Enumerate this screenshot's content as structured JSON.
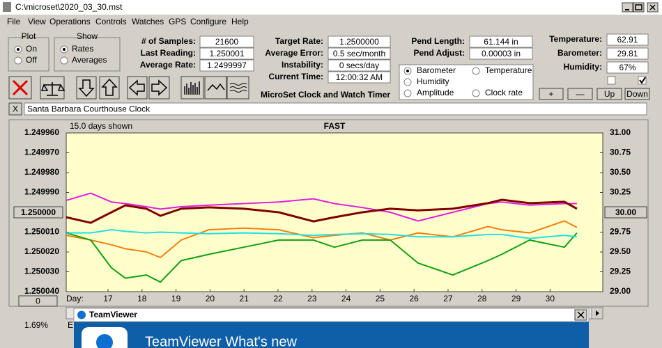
{
  "window": {
    "title": "C:\\microset\\2020_03_30.mst",
    "menu": [
      "File",
      "View",
      "Operations",
      "Controls",
      "Watches",
      "GPS",
      "Configure",
      "Help"
    ]
  },
  "plot_group": {
    "title": "Plot",
    "options": [
      "On",
      "Off"
    ],
    "selected": 0
  },
  "show_group": {
    "title": "Show",
    "options": [
      "Rates",
      "Averages"
    ],
    "selected": 0
  },
  "fields": [
    {
      "label": "# of Samples:",
      "value": "21600"
    },
    {
      "label": "Last Reading:",
      "value": "1.250001"
    },
    {
      "label": "Average Rate:",
      "value": "1.2499997"
    },
    {
      "label": "Target Rate:",
      "value": "1.2500000"
    },
    {
      "label": "Average Error:",
      "value": "0.5 sec/month"
    },
    {
      "label": "Instability:",
      "value": "0 secs/day"
    },
    {
      "label": "Current Time:",
      "value": "12:00:32 AM"
    },
    {
      "label": "Pend Length:",
      "value": "61.144 in"
    },
    {
      "label": "Pend Adjust:",
      "value": "0.00003 in"
    },
    {
      "label": "Temperature:",
      "value": "62.91"
    },
    {
      "label": "Barometer:",
      "value": "29.81"
    },
    {
      "label": "Humidity:",
      "value": "67%"
    }
  ],
  "app_title": "MicroSet Clock and Watch Timer",
  "env_buttons": [
    "+",
    "—",
    "Up",
    "Down"
  ],
  "close_button": "X",
  "watch_name": "Santa Barbara Courthouse Clock",
  "chart_data": {
    "type": "line",
    "title": "FAST",
    "subtitle": "15.0 days shown",
    "x_label": "Day:",
    "x": [
      15.77,
      16.49,
      17.1,
      17.51,
      18.13,
      18.54,
      19.15,
      19.97,
      20.99,
      22.02,
      23.04,
      23.66,
      24.48,
      25.3,
      26.12,
      27.14,
      28.17,
      28.58,
      29.4,
      30.42,
      30.79
    ],
    "xlim": [
      15.77,
      31.55
    ],
    "xticks": [
      17,
      18,
      19,
      20,
      21,
      22,
      23,
      24,
      25,
      26,
      27,
      28,
      29,
      30
    ],
    "ylim": [
      1.24996,
      1.25004
    ],
    "y_reversed": true,
    "yticks": [
      {
        "value": 1.24996,
        "label": "1.249960"
      },
      {
        "value": 1.24997,
        "label": "1.249970"
      },
      {
        "value": 1.24998,
        "label": "1.249980"
      },
      {
        "value": 1.24999,
        "label": "1.249990"
      },
      {
        "value": 1.25001,
        "label": "1.250010"
      },
      {
        "value": 1.25002,
        "label": "1.250020"
      },
      {
        "value": 1.25003,
        "label": "1.250030"
      },
      {
        "value": 1.25004,
        "label": "1.250040"
      }
    ],
    "y2lim": [
      29,
      31
    ],
    "y2ticks": [
      {
        "value": 31,
        "label": "31.00"
      },
      {
        "value": 30.75,
        "label": "30.75"
      },
      {
        "value": 30.5,
        "label": "30.50"
      },
      {
        "value": 30.25,
        "label": "30.25"
      },
      {
        "value": 29.75,
        "label": "29.75"
      },
      {
        "value": 29.5,
        "label": "29.50"
      },
      {
        "value": 29.25,
        "label": "29.25"
      },
      {
        "value": 29,
        "label": "29.00"
      }
    ],
    "center_left": "1.250000",
    "center_right": "30.00",
    "selected_series": 0,
    "series": [
      {
        "name": "Barometer",
        "color": "#f08010",
        "axis": "y2",
        "values": [
          29.71,
          29.65,
          29.59,
          29.54,
          29.5,
          29.43,
          29.65,
          29.78,
          29.8,
          29.78,
          29.68,
          29.71,
          29.74,
          29.65,
          29.74,
          29.69,
          29.82,
          29.78,
          29.74,
          29.89,
          29.81
        ]
      },
      {
        "name": "Temperature",
        "color": "#10a010",
        "axis": "y2",
        "values": [
          29.74,
          29.65,
          29.3,
          29.17,
          29.21,
          29.12,
          29.39,
          29.47,
          29.56,
          29.65,
          29.65,
          29.56,
          29.65,
          29.65,
          29.36,
          29.21,
          29.39,
          29.47,
          29.65,
          29.56,
          29.74
        ]
      },
      {
        "name": "Humidity",
        "color": "#e020e0",
        "axis": "y2",
        "values": [
          30.15,
          30.24,
          30.13,
          30.11,
          30.07,
          30.04,
          30.07,
          30.09,
          30.11,
          30.13,
          30.17,
          30.11,
          30.06,
          30.0,
          29.89,
          30.0,
          30.11,
          30.13,
          30.09,
          30.11,
          30.11
        ]
      },
      {
        "name": "Amplitude",
        "color": "#20e0e0",
        "axis": "y2",
        "values": [
          29.74,
          29.74,
          29.78,
          29.76,
          29.74,
          29.75,
          29.74,
          29.73,
          29.74,
          29.73,
          29.71,
          29.72,
          29.73,
          29.72,
          29.69,
          29.69,
          29.72,
          29.72,
          29.67,
          29.71,
          29.69
        ]
      },
      {
        "name": "Clock rate",
        "color": "#800000",
        "values": [
          1.2500025,
          1.2500053,
          1.25,
          1.2499965,
          1.2499982,
          1.2500018,
          1.2499982,
          1.2499975,
          1.2499982,
          1.25,
          1.2500046,
          1.2500025,
          1.25,
          1.2499982,
          1.249999,
          1.2499982,
          1.2499954,
          1.2499937,
          1.2499954,
          1.2499947,
          1.2499982
        ]
      }
    ]
  },
  "offset_button": "0",
  "status": "1.69%",
  "status_cut": "E",
  "popup": {
    "title": "TeamViewer",
    "heading": "TeamViewer What's new"
  }
}
